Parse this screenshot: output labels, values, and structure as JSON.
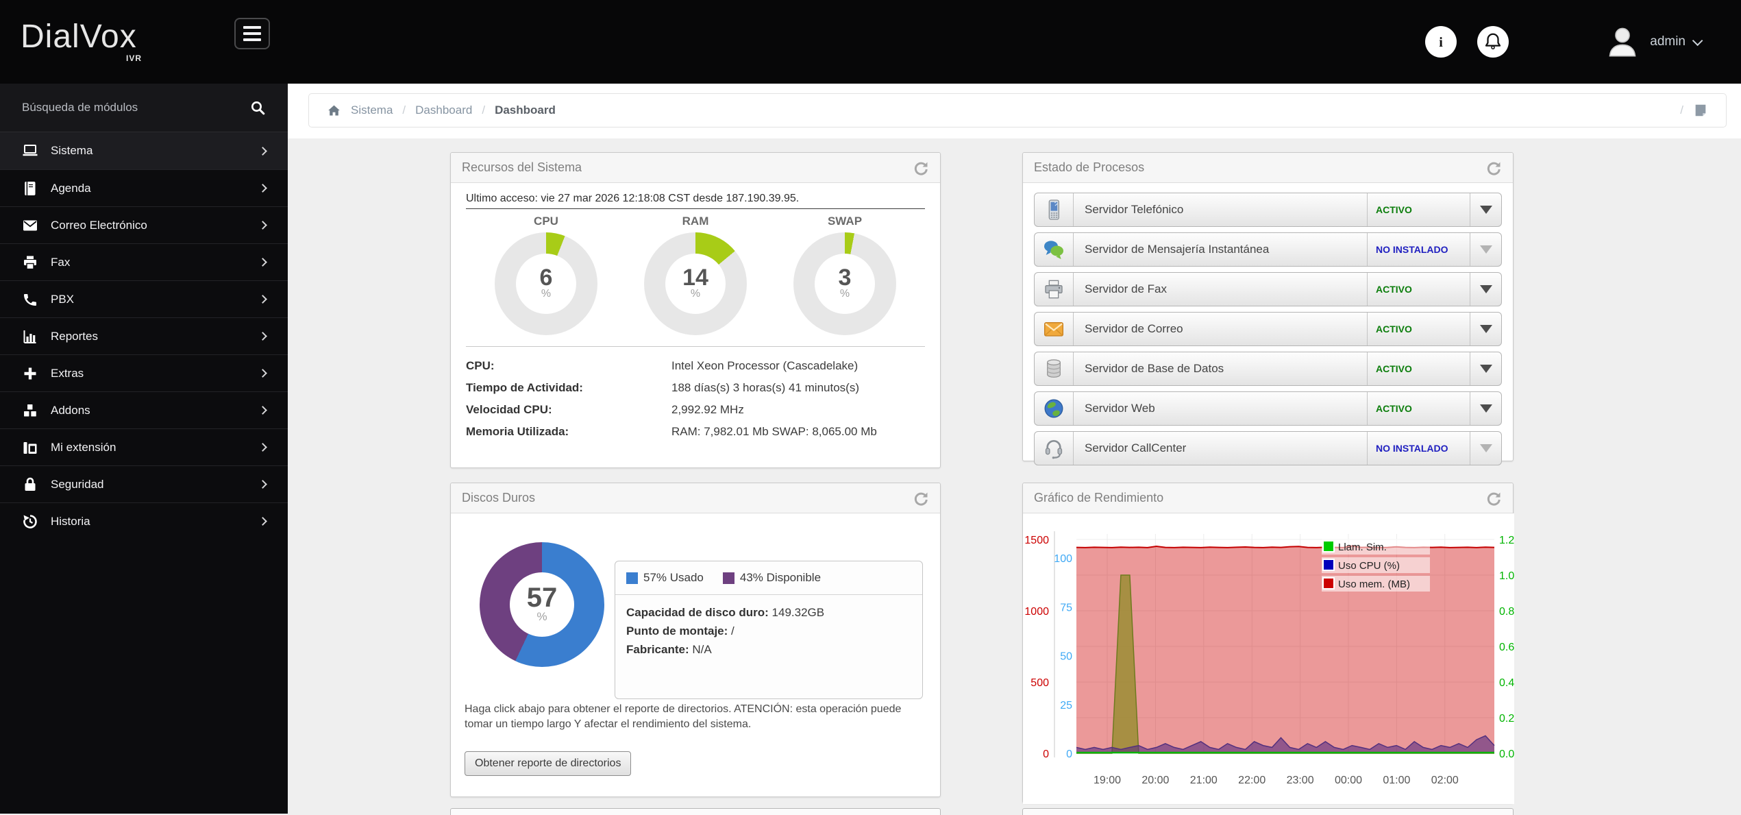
{
  "topbar": {
    "logo": "DialVox",
    "logo_sub": "IVR",
    "user": "admin"
  },
  "sidebar": {
    "search_placeholder": "Búsqueda de módulos",
    "items": [
      {
        "label": "Sistema",
        "icon": "laptop-icon",
        "active": true
      },
      {
        "label": "Agenda",
        "icon": "book-icon",
        "active": false
      },
      {
        "label": "Correo Electrónico",
        "icon": "envelope-icon",
        "active": false
      },
      {
        "label": "Fax",
        "icon": "printer-icon",
        "active": false
      },
      {
        "label": "PBX",
        "icon": "phone-icon",
        "active": false
      },
      {
        "label": "Reportes",
        "icon": "bar-chart-icon",
        "active": false
      },
      {
        "label": "Extras",
        "icon": "plus-icon",
        "active": false
      },
      {
        "label": "Addons",
        "icon": "cubes-icon",
        "active": false
      },
      {
        "label": "Mi extensión",
        "icon": "fax-icon",
        "active": false
      },
      {
        "label": "Seguridad",
        "icon": "lock-icon",
        "active": false
      },
      {
        "label": "Historia",
        "icon": "history-icon",
        "active": false
      }
    ]
  },
  "breadcrumb": {
    "parents": [
      "Sistema",
      "Dashboard"
    ],
    "current": "Dashboard",
    "separator": "/"
  },
  "recursos": {
    "title": "Recursos del Sistema",
    "last_access": "Ultimo acceso: vie 27 mar 2026 12:18:08 CST desde 187.190.39.95.",
    "gauges": [
      {
        "label": "CPU",
        "value": 6,
        "unit": "%"
      },
      {
        "label": "RAM",
        "value": 14,
        "unit": "%"
      },
      {
        "label": "SWAP",
        "value": 3,
        "unit": "%"
      }
    ],
    "gauge_color": "#a8cc17",
    "info": [
      {
        "label": "CPU:",
        "value": "Intel Xeon Processor (Cascadelake)"
      },
      {
        "label": "Tiempo de Actividad:",
        "value": "188 días(s) 3 horas(s) 41 minutos(s)"
      },
      {
        "label": "Velocidad CPU:",
        "value": "2,992.92 MHz"
      },
      {
        "label": "Memoria Utilizada:",
        "value": "RAM: 7,982.01 Mb SWAP: 8,065.00 Mb"
      }
    ]
  },
  "procesos": {
    "title": "Estado de Procesos",
    "rows": [
      {
        "name": "Servidor Telefónico",
        "status": "ACTIVO",
        "status_type": "active",
        "icon": "mobile-phone-icon"
      },
      {
        "name": "Servidor de Mensajería Instantánea",
        "status": "NO INSTALADO",
        "status_type": "not-installed",
        "icon": "chat-bubbles-icon"
      },
      {
        "name": "Servidor de Fax",
        "status": "ACTIVO",
        "status_type": "active",
        "icon": "fax-printer-icon"
      },
      {
        "name": "Servidor de Correo",
        "status": "ACTIVO",
        "status_type": "active",
        "icon": "mail-icon"
      },
      {
        "name": "Servidor de Base de Datos",
        "status": "ACTIVO",
        "status_type": "active",
        "icon": "database-icon"
      },
      {
        "name": "Servidor Web",
        "status": "ACTIVO",
        "status_type": "active",
        "icon": "globe-icon"
      },
      {
        "name": "Servidor CallCenter",
        "status": "NO INSTALADO",
        "status_type": "not-installed",
        "icon": "headset-icon"
      }
    ]
  },
  "discos": {
    "title": "Discos Duros",
    "donut": {
      "value": 57,
      "unit": "%",
      "used_color": "#3a7ecf",
      "free_color": "#6e4080"
    },
    "legend": [
      {
        "label": "57% Usado",
        "color": "#3a7ecf"
      },
      {
        "label": "43% Disponible",
        "color": "#6e4080"
      }
    ],
    "info": [
      {
        "label": "Capacidad de disco duro:",
        "value": "149.32GB"
      },
      {
        "label": "Punto de montaje:",
        "value": "/"
      },
      {
        "label": "Fabricante:",
        "value": "N/A"
      }
    ],
    "note": "Haga click abajo para obtener el reporte de directorios. ATENCIÓN: esta operación puede tomar un tiempo largo Y afectar el rendimiento del sistema.",
    "button": "Obtener reporte de directorios"
  },
  "grafico": {
    "title": "Gráfico de Rendimiento"
  },
  "chart_data": {
    "type": "area",
    "title": "Gráfico de Rendimiento",
    "x_tick_labels": [
      "19:00",
      "20:00",
      "21:00",
      "22:00",
      "23:00",
      "00:00",
      "01:00",
      "02:00"
    ],
    "legend": [
      {
        "label": "Llam. Sim.",
        "color": "#00cc00"
      },
      {
        "label": "Uso CPU (%)",
        "color": "#0000bb"
      },
      {
        "label": "Uso mem. (MB)",
        "color": "#cc0000"
      }
    ],
    "axes": {
      "memory": {
        "side": "left-outer",
        "color": "#cc0000",
        "ticks": [
          0,
          500,
          1000,
          1500
        ],
        "max": 1500
      },
      "cpu": {
        "side": "left-inner",
        "color": "#3fa9f5",
        "ticks": [
          0,
          25,
          50,
          75,
          100
        ],
        "max": 100
      },
      "calls": {
        "side": "right",
        "color": "#00b400",
        "tick_labels": [
          "0.0",
          "0.2",
          "0.4",
          "0.6",
          "0.8",
          "1.0",
          "1.2"
        ],
        "max": 1.2
      }
    },
    "series": [
      {
        "name": "Uso mem. (MB)",
        "axis": "memory",
        "values": [
          1444,
          1443,
          1445,
          1444,
          1443,
          1446,
          1444,
          1445,
          1443,
          1452,
          1444,
          1443,
          1445,
          1444,
          1443,
          1446,
          1444,
          1443,
          1445,
          1447,
          1444,
          1443,
          1446,
          1444,
          1449,
          1451,
          1444,
          1443,
          1445,
          1444,
          1443,
          1455,
          1444,
          1445,
          1443,
          1444,
          1448,
          1444,
          1443,
          1445,
          1444,
          1446,
          1443,
          1444,
          1445,
          1443,
          1446,
          1444
        ]
      },
      {
        "name": "Llam. Sim.",
        "axis": "calls",
        "values": [
          0,
          0,
          0,
          0,
          0,
          1,
          1,
          0,
          0,
          0,
          0,
          0,
          0,
          0,
          0,
          0,
          0,
          0,
          0,
          0,
          0,
          0,
          0,
          0,
          0,
          0,
          0,
          0,
          0,
          0,
          0,
          0,
          0,
          0,
          0,
          0,
          0,
          0,
          0,
          0,
          0,
          0,
          0,
          0,
          0,
          0,
          0,
          0
        ]
      },
      {
        "name": "Uso CPU (%)",
        "axis": "cpu",
        "values": [
          3,
          2,
          3,
          2,
          3,
          2,
          3,
          4,
          2,
          3,
          5,
          3,
          2,
          4,
          6,
          3,
          2,
          5,
          3,
          2,
          6,
          4,
          3,
          8,
          3,
          2,
          5,
          3,
          6,
          3,
          2,
          4,
          3,
          2,
          5,
          3,
          4,
          2,
          6,
          3,
          2,
          4,
          3,
          5,
          3,
          7,
          9,
          4
        ]
      }
    ]
  }
}
